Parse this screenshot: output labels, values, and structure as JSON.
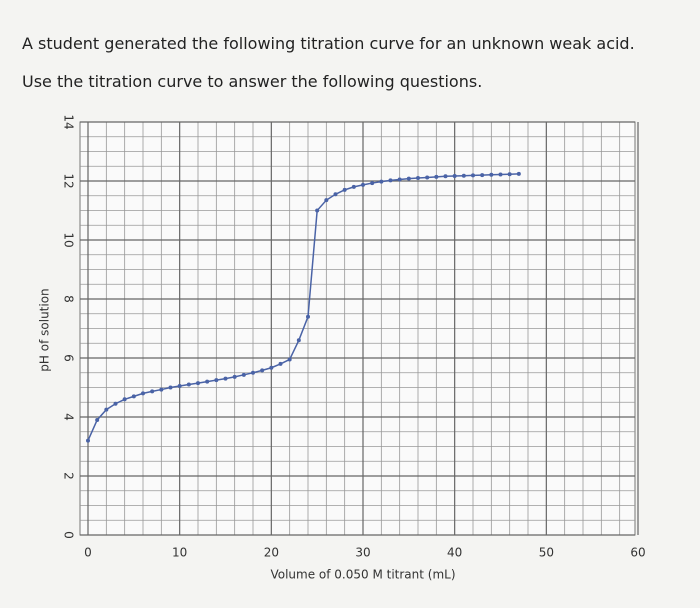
{
  "header": {
    "line1": "A student generated the following titration curve for an unknown weak acid.",
    "line2": "Use the titration curve to answer the following questions."
  },
  "chart_data": {
    "type": "line",
    "x_label": "Volume of 0.050 M titrant (mL)",
    "y_label": "pH of solution",
    "x": [
      0,
      1,
      2,
      3,
      4,
      5,
      6,
      7,
      8,
      9,
      10,
      11,
      12,
      13,
      14,
      15,
      16,
      17,
      18,
      19,
      20,
      21,
      22,
      23,
      24,
      25,
      26,
      27,
      28,
      29,
      30,
      31,
      32,
      33,
      34,
      35,
      36,
      37,
      38,
      39,
      40,
      41,
      42,
      43,
      44,
      45,
      46,
      47
    ],
    "series": [
      {
        "name": "pH",
        "color": "#4a63a6",
        "values": [
          3.2,
          3.9,
          4.25,
          4.45,
          4.6,
          4.7,
          4.8,
          4.87,
          4.93,
          5.0,
          5.05,
          5.1,
          5.15,
          5.2,
          5.25,
          5.3,
          5.36,
          5.43,
          5.5,
          5.58,
          5.67,
          5.8,
          5.95,
          6.6,
          7.4,
          11.0,
          11.35,
          11.55,
          11.7,
          11.8,
          11.87,
          11.93,
          11.98,
          12.02,
          12.05,
          12.08,
          12.1,
          12.12,
          12.14,
          12.16,
          12.17,
          12.18,
          12.19,
          12.2,
          12.21,
          12.22,
          12.23,
          12.24
        ]
      }
    ],
    "xlim": [
      0,
      60
    ],
    "xticks": [
      0,
      10,
      20,
      30,
      40,
      50,
      60
    ],
    "ylim": [
      0,
      14
    ],
    "yticks": [
      0,
      2,
      4,
      6,
      8,
      10,
      12,
      14
    ],
    "grid": true
  }
}
